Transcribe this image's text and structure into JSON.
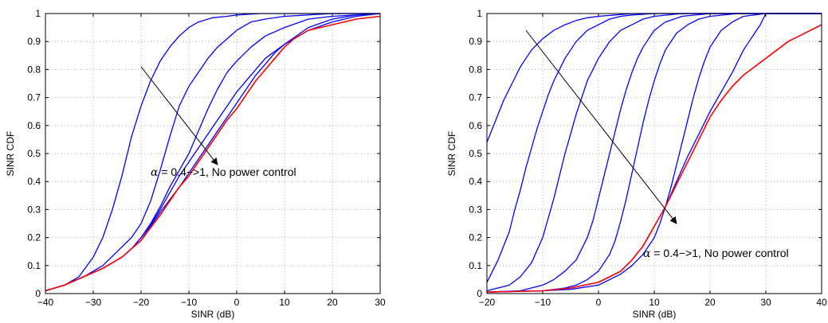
{
  "colors": {
    "blue": "#0000ff",
    "red": "#ff0000",
    "grid": "#9a9a9a"
  },
  "chart_data": [
    {
      "type": "line",
      "title": "",
      "xlabel": "SINR (dB)",
      "ylabel": "SINR CDF",
      "xlim": [
        -40,
        30
      ],
      "ylim": [
        0,
        1
      ],
      "xticks": [
        "-40",
        "-30",
        "-20",
        "-10",
        "0",
        "10",
        "20",
        "30"
      ],
      "yticks": [
        "0",
        "0.1",
        "0.2",
        "0.3",
        "0.4",
        "0.5",
        "0.6",
        "0.7",
        "0.8",
        "0.9",
        "1"
      ],
      "grid": true,
      "annotation": {
        "prefix": "α",
        "text": " = 0.4−>1, No power control",
        "label_at": [
          -18,
          0.42
        ],
        "arrow_from": [
          -20,
          0.81
        ],
        "arrow_to": [
          -4,
          0.46
        ]
      },
      "series": [
        {
          "color": "blue",
          "x": [
            -40,
            -36,
            -33,
            -30,
            -28,
            -26,
            -24,
            -22,
            -20,
            -18,
            -16,
            -14,
            -12,
            -10,
            -8,
            -5,
            -2,
            0,
            5,
            10,
            20,
            30
          ],
          "y": [
            0.01,
            0.03,
            0.06,
            0.13,
            0.2,
            0.3,
            0.42,
            0.56,
            0.67,
            0.76,
            0.83,
            0.88,
            0.92,
            0.95,
            0.97,
            0.985,
            0.99,
            0.995,
            1,
            1,
            1,
            1
          ]
        },
        {
          "color": "blue",
          "x": [
            -40,
            -36,
            -32,
            -28,
            -25,
            -22,
            -20,
            -18,
            -16,
            -14,
            -12,
            -10,
            -8,
            -6,
            -4,
            -2,
            0,
            3,
            6,
            10,
            20,
            30
          ],
          "y": [
            0.01,
            0.03,
            0.06,
            0.1,
            0.15,
            0.2,
            0.25,
            0.33,
            0.44,
            0.56,
            0.67,
            0.74,
            0.79,
            0.84,
            0.88,
            0.91,
            0.94,
            0.97,
            0.98,
            0.99,
            1,
            1
          ]
        },
        {
          "color": "blue",
          "x": [
            -40,
            -36,
            -32,
            -28,
            -24,
            -22,
            -20,
            -18,
            -16,
            -14,
            -12,
            -10,
            -8,
            -6,
            -4,
            -2,
            0,
            3,
            6,
            10,
            15,
            20,
            30
          ],
          "y": [
            0.01,
            0.03,
            0.06,
            0.09,
            0.13,
            0.16,
            0.2,
            0.25,
            0.31,
            0.38,
            0.44,
            0.5,
            0.58,
            0.66,
            0.73,
            0.79,
            0.83,
            0.88,
            0.92,
            0.95,
            0.98,
            0.99,
            1
          ]
        },
        {
          "color": "blue",
          "x": [
            -40,
            -36,
            -32,
            -28,
            -24,
            -20,
            -16,
            -14,
            -12,
            -10,
            -8,
            -6,
            -4,
            -2,
            0,
            3,
            6,
            10,
            15,
            20,
            25,
            30
          ],
          "y": [
            0.01,
            0.03,
            0.06,
            0.09,
            0.13,
            0.19,
            0.3,
            0.36,
            0.42,
            0.47,
            0.52,
            0.57,
            0.62,
            0.67,
            0.72,
            0.78,
            0.84,
            0.89,
            0.95,
            0.98,
            0.995,
            1
          ]
        },
        {
          "color": "blue",
          "x": [
            -40,
            -36,
            -32,
            -28,
            -24,
            -20,
            -16,
            -12,
            -10,
            -8,
            -6,
            -4,
            -2,
            0,
            2,
            4,
            6,
            8,
            10,
            15,
            20,
            25,
            30
          ],
          "y": [
            0.01,
            0.03,
            0.06,
            0.09,
            0.13,
            0.19,
            0.29,
            0.38,
            0.43,
            0.48,
            0.53,
            0.58,
            0.63,
            0.68,
            0.73,
            0.78,
            0.82,
            0.86,
            0.89,
            0.94,
            0.97,
            0.99,
            1
          ]
        },
        {
          "color": "red",
          "x": [
            -40,
            -36,
            -32,
            -28,
            -24,
            -20,
            -16,
            -12,
            -10,
            -8,
            -6,
            -4,
            -2,
            0,
            2,
            4,
            6,
            8,
            10,
            12,
            15,
            20,
            25,
            30
          ],
          "y": [
            0.01,
            0.03,
            0.06,
            0.09,
            0.13,
            0.19,
            0.28,
            0.38,
            0.42,
            0.47,
            0.52,
            0.57,
            0.62,
            0.66,
            0.71,
            0.76,
            0.8,
            0.84,
            0.88,
            0.91,
            0.94,
            0.96,
            0.98,
            0.99
          ]
        }
      ]
    },
    {
      "type": "line",
      "title": "",
      "xlabel": "SINR (dB)",
      "ylabel": "SINR CDF",
      "xlim": [
        -20,
        40
      ],
      "ylim": [
        0,
        1
      ],
      "xticks": [
        "-20",
        "-10",
        "0",
        "10",
        "20",
        "30",
        "40"
      ],
      "yticks": [
        "0",
        "0.1",
        "0.2",
        "0.3",
        "0.4",
        "0.5",
        "0.6",
        "0.7",
        "0.8",
        "0.9",
        "1"
      ],
      "grid": true,
      "annotation": {
        "prefix": "α",
        "text": " = 0.4−>1, No power control",
        "label_at": [
          8,
          0.13
        ],
        "arrow_from": [
          -13,
          0.94
        ],
        "arrow_to": [
          14,
          0.25
        ]
      },
      "series": [
        {
          "color": "blue",
          "x": [
            -20,
            -19,
            -18,
            -17,
            -16,
            -15,
            -14,
            -13,
            -12,
            -11,
            -10,
            -8,
            -6,
            -4,
            -2,
            0,
            3,
            6,
            10,
            15,
            20,
            30,
            40
          ],
          "y": [
            0.54,
            0.59,
            0.64,
            0.69,
            0.73,
            0.77,
            0.81,
            0.84,
            0.87,
            0.89,
            0.91,
            0.94,
            0.96,
            0.975,
            0.985,
            0.99,
            0.995,
            1,
            1,
            1,
            1,
            1,
            1
          ]
        },
        {
          "color": "blue",
          "x": [
            -20,
            -18,
            -16,
            -15,
            -14,
            -13,
            -12,
            -11,
            -10,
            -9,
            -8,
            -7,
            -6,
            -5,
            -4,
            -3,
            -2,
            0,
            2,
            4,
            6,
            10,
            15,
            20,
            30,
            40
          ],
          "y": [
            0.04,
            0.12,
            0.22,
            0.3,
            0.37,
            0.45,
            0.52,
            0.59,
            0.65,
            0.71,
            0.76,
            0.8,
            0.84,
            0.87,
            0.9,
            0.92,
            0.94,
            0.96,
            0.98,
            0.99,
            0.995,
            1,
            1,
            1,
            1,
            1
          ]
        },
        {
          "color": "blue",
          "x": [
            -20,
            -16,
            -14,
            -12,
            -10,
            -9,
            -8,
            -7,
            -6,
            -5,
            -4,
            -3,
            -2,
            -1,
            0,
            2,
            4,
            6,
            8,
            10,
            15,
            20,
            30,
            40
          ],
          "y": [
            0.01,
            0.03,
            0.06,
            0.11,
            0.2,
            0.27,
            0.34,
            0.42,
            0.5,
            0.57,
            0.64,
            0.7,
            0.76,
            0.8,
            0.84,
            0.9,
            0.94,
            0.96,
            0.98,
            0.99,
            1,
            1,
            1,
            1
          ]
        },
        {
          "color": "blue",
          "x": [
            -20,
            -14,
            -10,
            -8,
            -6,
            -4,
            -2,
            -1,
            0,
            1,
            2,
            3,
            4,
            5,
            6,
            7,
            8,
            10,
            12,
            15,
            20,
            30,
            40
          ],
          "y": [
            0.005,
            0.01,
            0.03,
            0.05,
            0.08,
            0.12,
            0.2,
            0.26,
            0.34,
            0.42,
            0.5,
            0.58,
            0.66,
            0.73,
            0.79,
            0.84,
            0.88,
            0.94,
            0.97,
            0.99,
            1,
            1,
            1
          ]
        },
        {
          "color": "blue",
          "x": [
            -20,
            -10,
            -6,
            -4,
            -2,
            0,
            2,
            3,
            4,
            5,
            6,
            7,
            8,
            9,
            10,
            11,
            12,
            14,
            16,
            18,
            20,
            25,
            30,
            40
          ],
          "y": [
            0.005,
            0.01,
            0.02,
            0.03,
            0.05,
            0.08,
            0.14,
            0.19,
            0.26,
            0.34,
            0.43,
            0.52,
            0.61,
            0.69,
            0.76,
            0.82,
            0.87,
            0.93,
            0.96,
            0.98,
            0.99,
            1,
            1,
            1
          ]
        },
        {
          "color": "blue",
          "x": [
            -20,
            -10,
            -5,
            0,
            2,
            4,
            6,
            8,
            10,
            11,
            12,
            13,
            14,
            15,
            16,
            17,
            18,
            19,
            20,
            22,
            24,
            26,
            30,
            40
          ],
          "y": [
            0.005,
            0.01,
            0.015,
            0.03,
            0.05,
            0.07,
            0.1,
            0.14,
            0.2,
            0.25,
            0.31,
            0.38,
            0.46,
            0.54,
            0.62,
            0.7,
            0.77,
            0.83,
            0.88,
            0.94,
            0.97,
            0.99,
            1,
            1
          ]
        },
        {
          "color": "blue",
          "x": [
            -20,
            -10,
            -5,
            0,
            2,
            4,
            6,
            8,
            10,
            12,
            14,
            16,
            18,
            20,
            22,
            24,
            25,
            26,
            27,
            28,
            29,
            30,
            40
          ],
          "y": [
            0.005,
            0.01,
            0.02,
            0.04,
            0.06,
            0.08,
            0.12,
            0.17,
            0.24,
            0.31,
            0.4,
            0.49,
            0.57,
            0.65,
            0.72,
            0.79,
            0.83,
            0.87,
            0.9,
            0.93,
            0.96,
            1,
            1
          ]
        },
        {
          "color": "red",
          "x": [
            -20,
            -10,
            -5,
            0,
            2,
            4,
            6,
            8,
            10,
            12,
            14,
            16,
            18,
            20,
            22,
            24,
            26,
            28,
            30,
            32,
            34,
            36,
            38,
            40
          ],
          "y": [
            0.005,
            0.01,
            0.02,
            0.04,
            0.06,
            0.08,
            0.12,
            0.17,
            0.24,
            0.31,
            0.39,
            0.47,
            0.55,
            0.63,
            0.69,
            0.74,
            0.78,
            0.81,
            0.84,
            0.87,
            0.9,
            0.92,
            0.94,
            0.96
          ]
        }
      ]
    }
  ]
}
